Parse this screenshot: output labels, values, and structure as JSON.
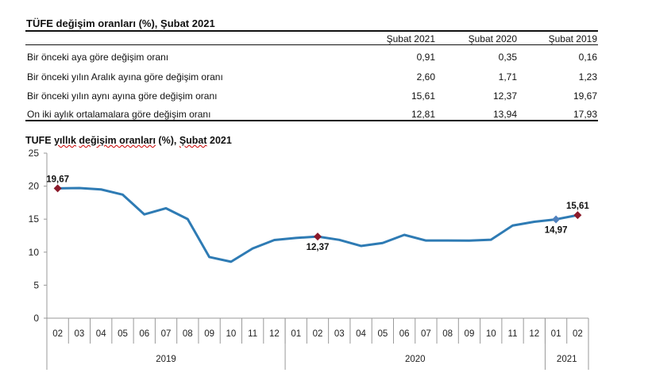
{
  "table": {
    "title": "TÜFE değişim oranları (%), Şubat 2021",
    "columns": [
      "Şubat 2021",
      "Şubat 2020",
      "Şubat 2019"
    ],
    "rows": [
      {
        "label": "Bir önceki aya göre değişim oranı",
        "values": [
          "0,91",
          "0,35",
          "0,16"
        ]
      },
      {
        "label": "Bir önceki yılın Aralık ayına göre değişim oranı",
        "values": [
          "2,60",
          "1,71",
          "1,23"
        ]
      },
      {
        "label": "Bir önceki yılın aynı ayına göre değişim oranı",
        "values": [
          "15,61",
          "12,37",
          "19,67"
        ]
      },
      {
        "label": "On iki aylık ortalamalara göre değişim oranı",
        "values": [
          "12,81",
          "13,94",
          "17,93"
        ]
      }
    ]
  },
  "chart_title": {
    "p1": "TUFE ",
    "p2": "yıllık",
    "p3": " ",
    "p4": "değişim oranları",
    "p5": " (%), ",
    "p6": "Şubat",
    "p7": " 2021"
  },
  "chart_data": {
    "type": "line",
    "title": "TUFE yıllık değişim oranları (%), Şubat 2021",
    "ylim": [
      0,
      25
    ],
    "yticks": [
      "0",
      "5",
      "10",
      "15",
      "20",
      "25"
    ],
    "categories": [
      "02",
      "03",
      "04",
      "05",
      "06",
      "07",
      "08",
      "09",
      "10",
      "11",
      "12",
      "01",
      "02",
      "03",
      "04",
      "05",
      "06",
      "07",
      "08",
      "09",
      "10",
      "11",
      "12",
      "01",
      "02"
    ],
    "groups": [
      {
        "label": "2019",
        "count": 11
      },
      {
        "label": "2020",
        "count": 12
      },
      {
        "label": "2021",
        "count": 2
      }
    ],
    "values": [
      19.67,
      19.71,
      19.5,
      18.71,
      15.72,
      16.65,
      15.01,
      9.26,
      8.55,
      10.56,
      11.84,
      12.15,
      12.37,
      11.86,
      10.94,
      11.39,
      12.62,
      11.76,
      11.77,
      11.75,
      11.89,
      14.03,
      14.6,
      14.97,
      15.61
    ],
    "annotations": [
      {
        "index": 0,
        "label": "19,67",
        "color": "#8b1a2b",
        "pos": "above"
      },
      {
        "index": 12,
        "label": "12,37",
        "color": "#8b1a2b",
        "pos": "below"
      },
      {
        "index": 23,
        "label": "14,97",
        "color": "#4f81bd",
        "pos": "below"
      },
      {
        "index": 24,
        "label": "15,61",
        "color": "#8b1a2b",
        "pos": "above"
      }
    ],
    "line_color": "#2e7bb4"
  }
}
